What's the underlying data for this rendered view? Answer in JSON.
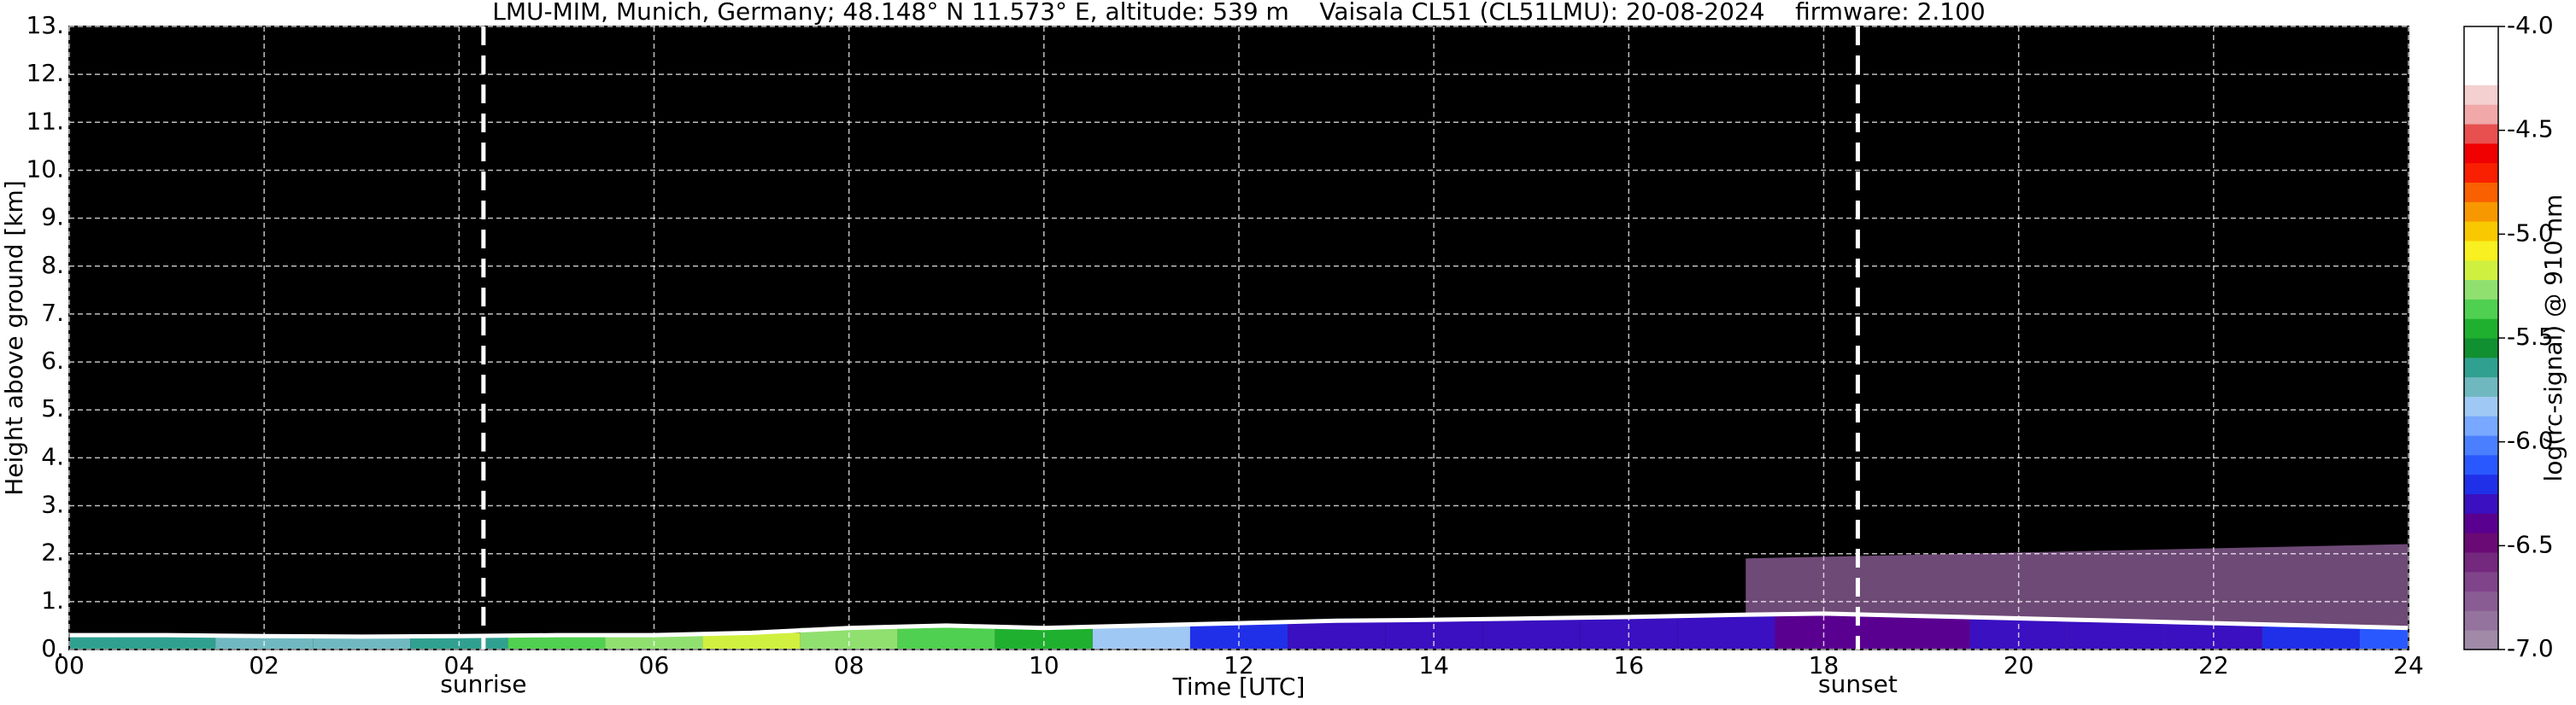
{
  "chart_data": {
    "type": "heatmap",
    "title": "LMU-MIM, Munich, Germany; 48.148° N 11.573° E, altitude: 539 m    Vaisala CL51 (CL51LMU): 20-08-2024    firmware: 2.100",
    "xlabel": "Time [UTC]",
    "ylabel": "Height above ground [km]",
    "colorbar_label": "log(rc-signal) @ 910 nm",
    "xlim": [
      0,
      24
    ],
    "xticks": [
      {
        "value": 0,
        "label": "00"
      },
      {
        "value": 2,
        "label": "02"
      },
      {
        "value": 4,
        "label": "04"
      },
      {
        "value": 6,
        "label": "06"
      },
      {
        "value": 8,
        "label": "08"
      },
      10,
      12,
      14,
      16,
      18,
      20,
      22,
      24
    ],
    "ylim": [
      0,
      13
    ],
    "yticks": [
      {
        "value": 0,
        "label": "0."
      },
      {
        "value": 1,
        "label": "1."
      },
      {
        "value": 2,
        "label": "2."
      },
      {
        "value": 3,
        "label": "3."
      },
      {
        "value": 4,
        "label": "4."
      },
      {
        "value": 5,
        "label": "5."
      },
      {
        "value": 6,
        "label": "6."
      },
      {
        "value": 7,
        "label": "7."
      },
      {
        "value": 8,
        "label": "8."
      },
      {
        "value": 9,
        "label": "9."
      },
      {
        "value": 10,
        "label": "10."
      },
      {
        "value": 11,
        "label": "11."
      },
      {
        "value": 12,
        "label": "12."
      },
      {
        "value": 13,
        "label": "13."
      }
    ],
    "grid": true,
    "clim": [
      -7,
      -4
    ],
    "cticks": [
      {
        "value": -4,
        "label": "-4.0"
      },
      -4.5,
      {
        "value": -5,
        "label": "-5.0"
      },
      -5.5,
      {
        "value": -6,
        "label": "-6.0"
      },
      -6.5,
      {
        "value": -7,
        "label": "-7.0"
      }
    ],
    "colormap": [
      "#a08aa8",
      "#94749e",
      "#8a5c94",
      "#80448a",
      "#74287e",
      "#6a0a74",
      "#5a0090",
      "#3a10c0",
      "#2030e8",
      "#2a58ff",
      "#4a80ff",
      "#78a8ff",
      "#a0c8f4",
      "#70b8c0",
      "#30a090",
      "#109030",
      "#20b030",
      "#50d050",
      "#90e070",
      "#d0f040",
      "#f8f020",
      "#f8c800",
      "#f89800",
      "#f86000",
      "#f82000",
      "#f00000",
      "#e85050",
      "#f0a8a8",
      "#f4d0d0",
      "#ffffff",
      "#ffffff",
      "#ffffff"
    ],
    "x": [
      0,
      1,
      2,
      3,
      4,
      5,
      6,
      7,
      8,
      9,
      10,
      11,
      12,
      13,
      14,
      15,
      16,
      17,
      18,
      19,
      20,
      21,
      22,
      23,
      24
    ],
    "layer_top": [
      0.3,
      0.3,
      0.28,
      0.27,
      0.28,
      0.3,
      0.3,
      0.35,
      0.45,
      0.5,
      0.45,
      0.5,
      0.55,
      0.6,
      0.62,
      0.65,
      0.68,
      0.72,
      0.75,
      0.7,
      0.65,
      0.6,
      0.55,
      0.5,
      0.45
    ],
    "layer_signal": [
      -5.6,
      -5.6,
      -5.7,
      -5.7,
      -5.6,
      -5.4,
      -5.3,
      -5.2,
      -5.3,
      -5.4,
      -5.5,
      -5.8,
      -6.2,
      -6.3,
      -6.3,
      -6.3,
      -6.3,
      -6.3,
      -6.4,
      -6.4,
      -6.3,
      -6.3,
      -6.3,
      -6.2,
      -6.1
    ],
    "residual_layer": {
      "x": [
        17.2,
        24
      ],
      "top": [
        1.9,
        2.2
      ],
      "signal": -6.8
    },
    "annotations": [
      {
        "x": 4.25,
        "label": "sunrise"
      },
      {
        "x": 18.35,
        "label": "sunset"
      }
    ]
  }
}
